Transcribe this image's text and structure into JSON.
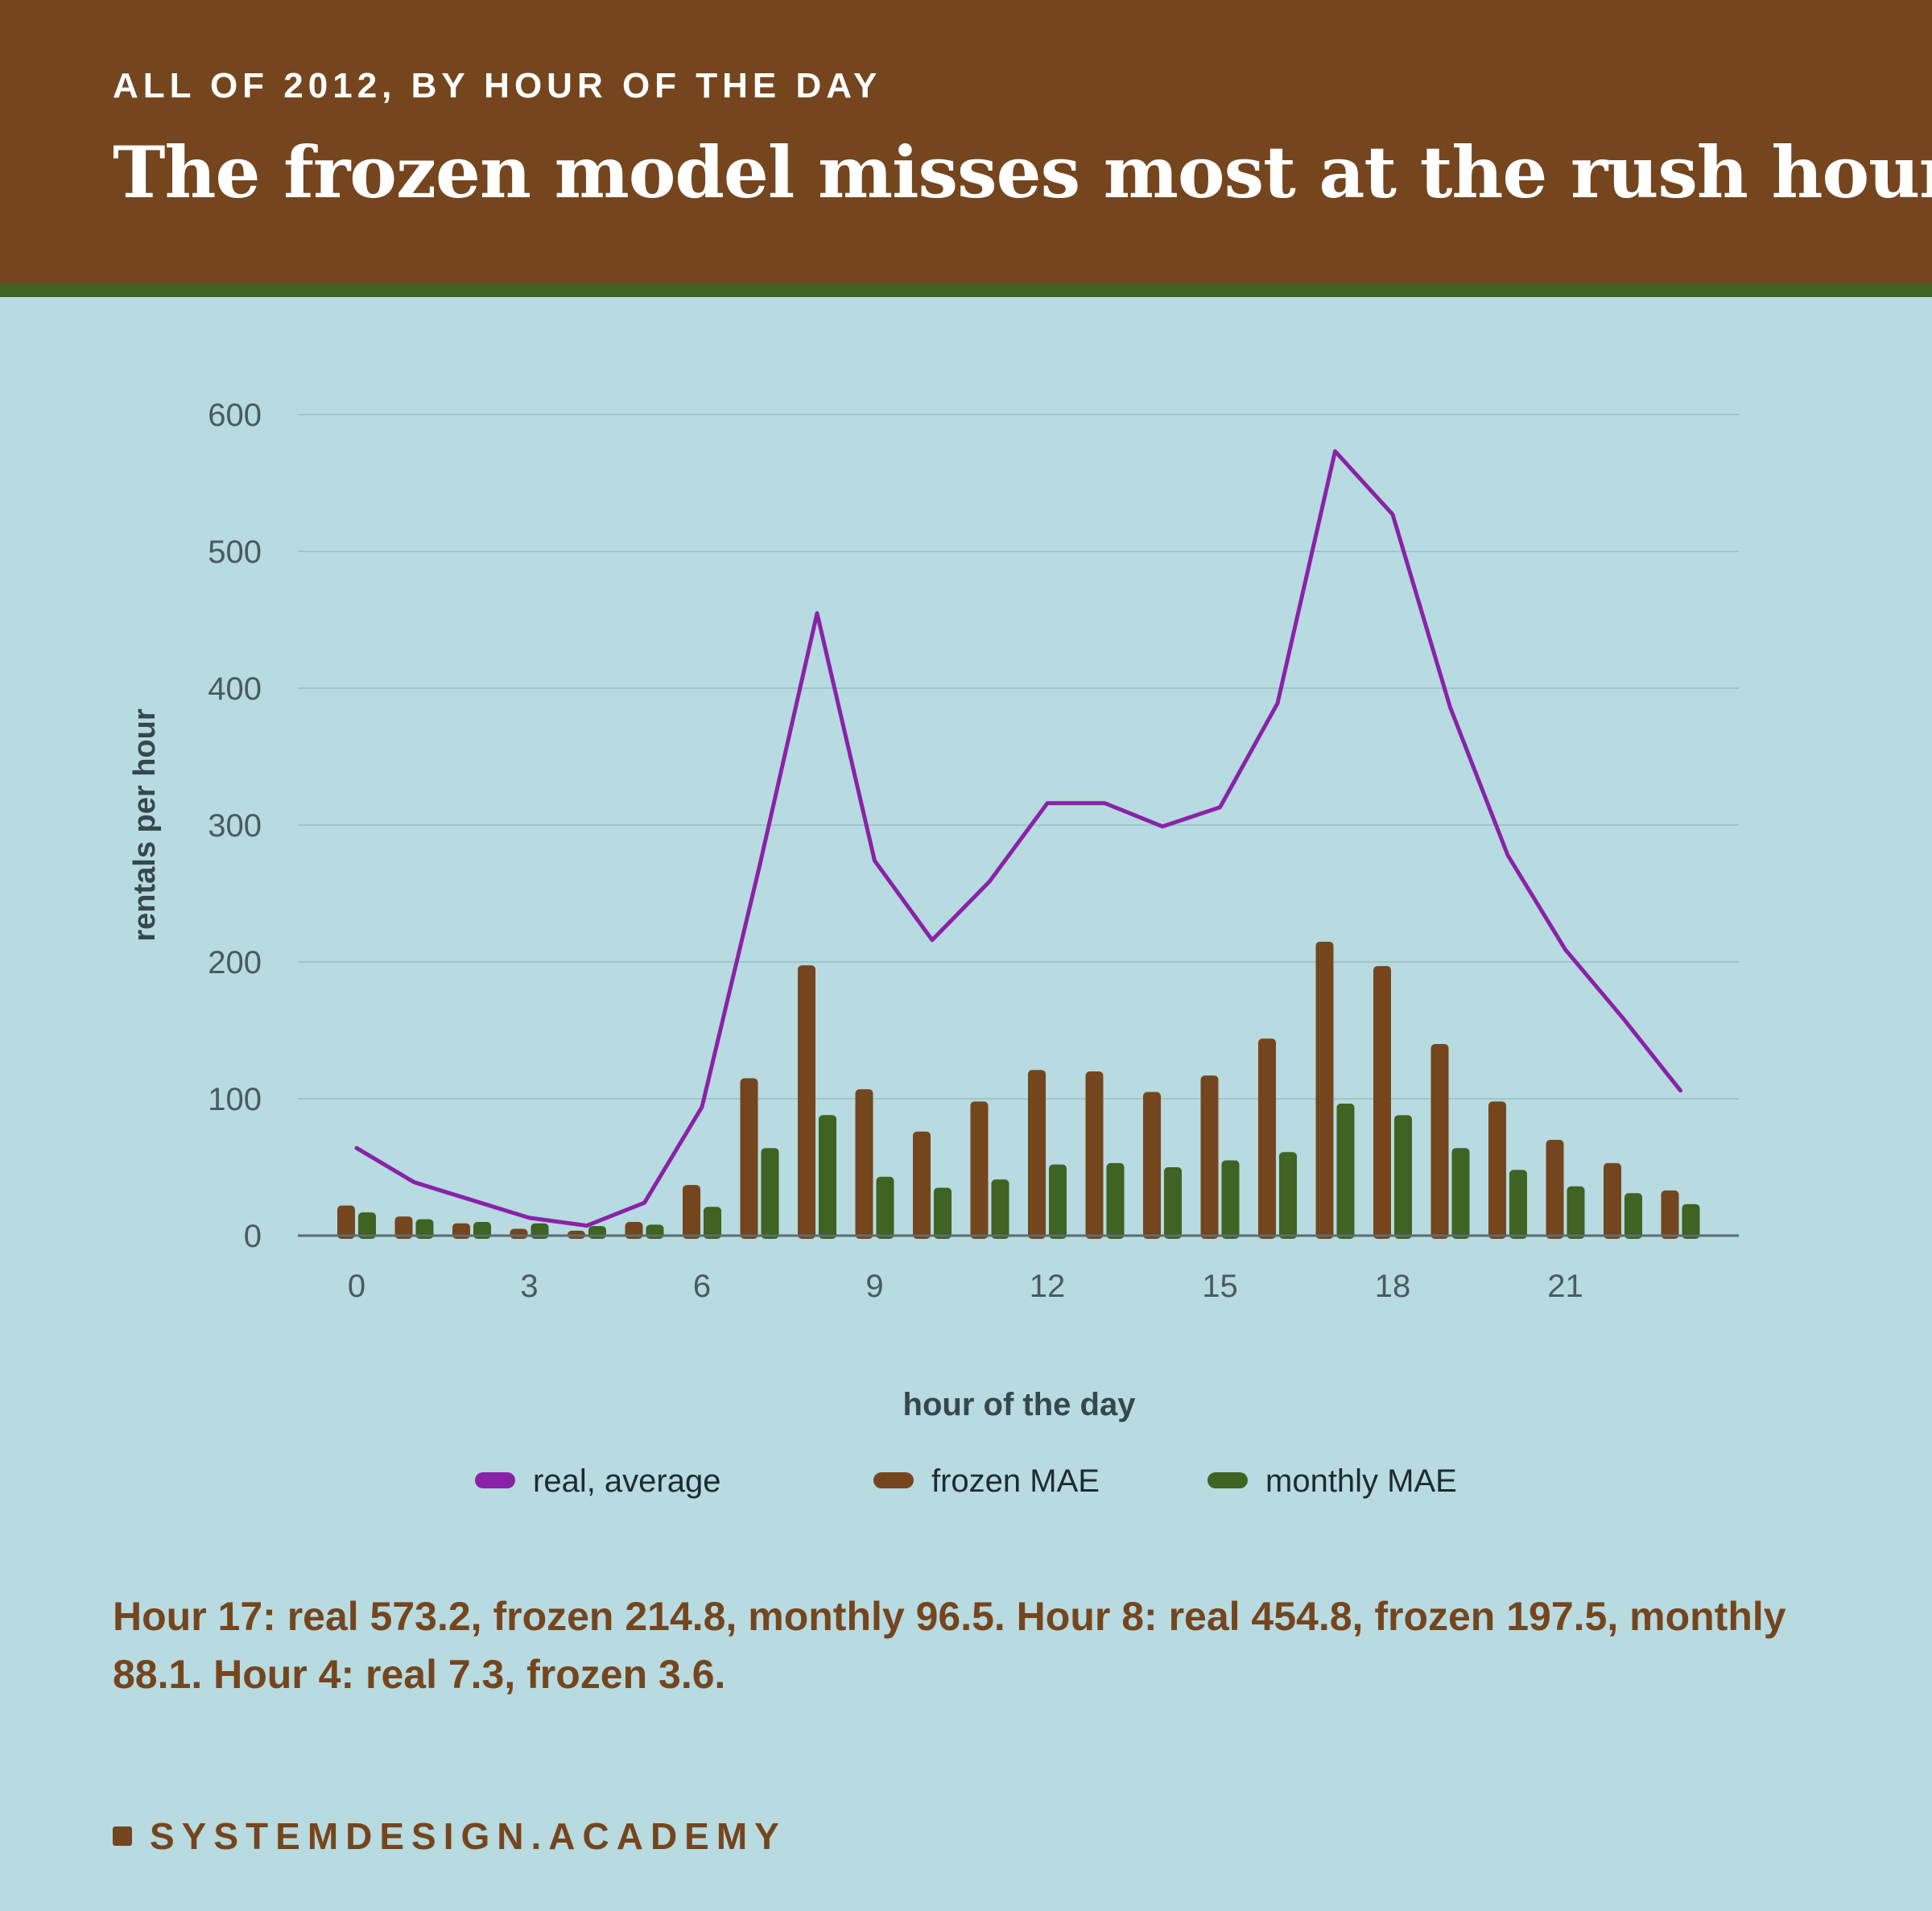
{
  "header": {
    "kicker": "ALL OF 2012, BY HOUR OF THE DAY",
    "title": "The frozen model misses most at the rush hours"
  },
  "summary": "Hour 17: real 573.2, frozen 214.8, monthly 96.5. Hour 8: real 454.8, frozen 197.5, monthly 88.1. Hour 4: real 7.3, frozen 3.6.",
  "footer": {
    "brand": "SYSTEMDESIGN.ACADEMY"
  },
  "colors": {
    "background": "#b7dbe0",
    "header": "#75451e",
    "stripe": "#3e6322",
    "real": "#8a22a8",
    "frozen": "#75451e",
    "monthly": "#3e6322"
  },
  "chart_data": {
    "type": "bar",
    "xlabel": "hour of the day",
    "ylabel": "rentals per hour",
    "ylim": [
      0,
      600
    ],
    "yticks": [
      0,
      100,
      200,
      300,
      400,
      500,
      600
    ],
    "xticks": [
      0,
      3,
      6,
      9,
      12,
      15,
      18,
      21
    ],
    "grid": true,
    "legend_position": "bottom",
    "x": [
      0,
      1,
      2,
      3,
      4,
      5,
      6,
      7,
      8,
      9,
      10,
      11,
      12,
      13,
      14,
      15,
      16,
      17,
      18,
      19,
      20,
      21,
      22,
      23
    ],
    "series": [
      {
        "name": "real, average",
        "type": "line",
        "color": "#8a22a8",
        "values": [
          64,
          39,
          26,
          13,
          7.3,
          24,
          94,
          270,
          454.8,
          274,
          216,
          259,
          316,
          316,
          299,
          313,
          389,
          573.2,
          527,
          386,
          278,
          209,
          159,
          106
        ]
      },
      {
        "name": "frozen MAE",
        "type": "bar",
        "color": "#75451e",
        "values": [
          22,
          14,
          9,
          5,
          3.6,
          10,
          37,
          115,
          197.5,
          107,
          76,
          98,
          121,
          120,
          105,
          117,
          144,
          214.8,
          197,
          140,
          98,
          70,
          53,
          33
        ]
      },
      {
        "name": "monthly MAE",
        "type": "bar",
        "color": "#3e6322",
        "values": [
          17,
          12,
          10,
          9,
          7,
          8,
          21,
          64,
          88.1,
          43,
          35,
          41,
          52,
          53,
          50,
          55,
          61,
          96.5,
          88,
          64,
          48,
          36,
          31,
          23
        ]
      }
    ]
  }
}
